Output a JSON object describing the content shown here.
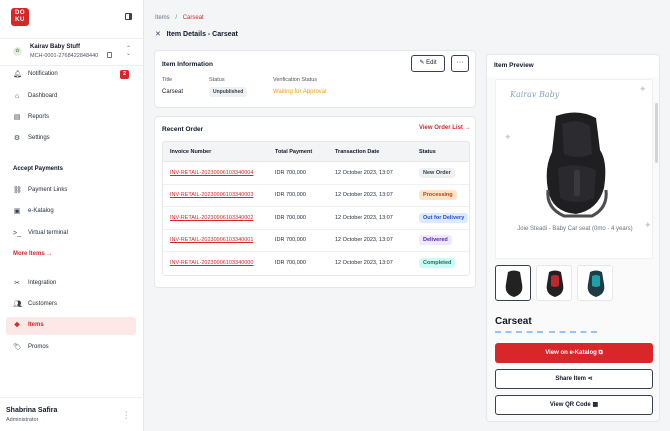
{
  "app": {
    "logo_text": "DO\nKU",
    "brand_color": "#d9262b"
  },
  "merchant": {
    "avatar": "✿",
    "name": "Kairav Baby Stuff",
    "id": "MCH-0001-2768422848440"
  },
  "nav": {
    "notification": {
      "label": "Notification",
      "count": "2"
    },
    "dashboard": "Dashboard",
    "reports": "Reports",
    "settings": "Settings",
    "accept_payments_title": "Accept Payments",
    "payment_links": "Payment Links",
    "ekatalog": "e-Katalog",
    "virtual_terminal": "Virtual terminal",
    "more_items": "More Items →",
    "integration": "Integration",
    "customers": "Customers",
    "items": "Items",
    "promos": "Promos"
  },
  "user": {
    "name": "Shabrina Safira",
    "role": "Administrator"
  },
  "breadcrumb": {
    "root": "Items",
    "sep": "/",
    "current": "Carseat"
  },
  "page": {
    "close": "✕",
    "title": "Item Details - Carseat"
  },
  "item_info": {
    "title": "Item Information",
    "edit_label": "Edit",
    "more_label": "···",
    "labels": {
      "title": "Title",
      "status": "Status",
      "verification": "Verification Status"
    },
    "values": {
      "title": "Carseat",
      "status": "Unpublished",
      "verification": "Waiting for Approval"
    }
  },
  "recent_order": {
    "title": "Recent Order",
    "view_list": "View Order List →",
    "columns": [
      "Invoice Number",
      "Total Payment",
      "Transaction Date",
      "Status"
    ],
    "rows": [
      {
        "invoice": "INV-RETAIL-20230906103340004",
        "total": "IDR 700,000",
        "date": "12 October 2023, 13:07",
        "status": "New Order"
      },
      {
        "invoice": "INV-RETAIL-20230906103340003",
        "total": "IDR 700,000",
        "date": "12 October 2023, 13:07",
        "status": "Processing"
      },
      {
        "invoice": "INV-RETAIL-20230906103340002",
        "total": "IDR 700,000",
        "date": "12 October 2023, 13:07",
        "status": "Out for Delivery"
      },
      {
        "invoice": "INV-RETAIL-20230906103340001",
        "total": "IDR 700,000",
        "date": "12 October 2023, 13:07",
        "status": "Delivered"
      },
      {
        "invoice": "INV-RETAIL-20230906103340000",
        "total": "IDR 700,000",
        "date": "12 October 2023, 13:07",
        "status": "Completed"
      }
    ]
  },
  "preview": {
    "title": "Item Preview",
    "brand": "Kairav Baby",
    "brand_sub": "",
    "caption": "Joie Steadi - Baby Car seat (0mo - 4 years)",
    "product_name": "Carseat",
    "view_btn": "View on e-Katalog ⧉",
    "share_btn": "Share Item ⋖",
    "qr_btn": "View QR Code ▦"
  }
}
